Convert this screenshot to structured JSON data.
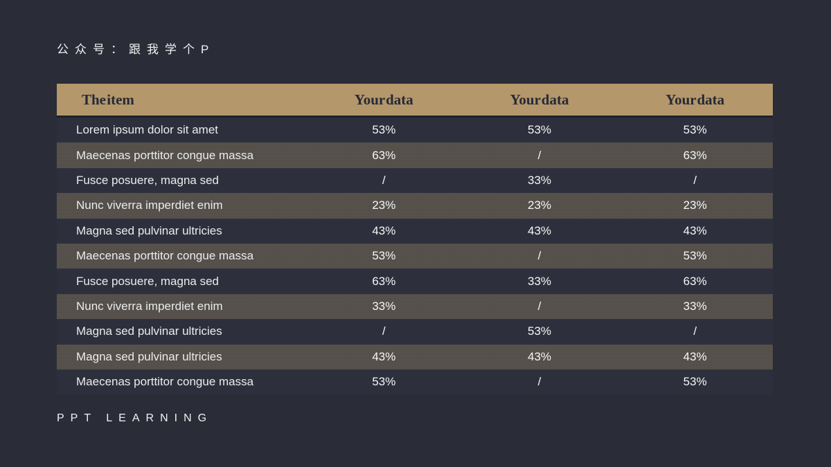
{
  "slide": {
    "watermark_top": "公众号：跟我学个P",
    "watermark_bottom": "PPT LEARNING"
  },
  "colors": {
    "background": "#2a2d38",
    "header_band": "#b4976b",
    "header_text": "#262a37",
    "striped_row": "#544f49",
    "dark_row": "#2d303c",
    "body_text": "#f2f2f2"
  },
  "table": {
    "headers": [
      "The item",
      "Your data",
      "Your data",
      "Your data"
    ],
    "rows": [
      {
        "item": "Lorem ipsum dolor sit amet",
        "values": [
          "53%",
          "53%",
          "53%"
        ]
      },
      {
        "item": "Maecenas porttitor congue massa",
        "values": [
          "63%",
          "/",
          "63%"
        ]
      },
      {
        "item": "Fusce posuere, magna sed",
        "values": [
          "/",
          "33%",
          "/"
        ]
      },
      {
        "item": "Nunc viverra imperdiet enim",
        "values": [
          "23%",
          "23%",
          "23%"
        ]
      },
      {
        "item": "Magna sed pulvinar ultricies",
        "values": [
          "43%",
          "43%",
          "43%"
        ]
      },
      {
        "item": "Maecenas porttitor congue massa",
        "values": [
          "53%",
          "/",
          "53%"
        ]
      },
      {
        "item": "Fusce posuere, magna sed",
        "values": [
          "63%",
          "33%",
          "63%"
        ]
      },
      {
        "item": "Nunc viverra imperdiet enim",
        "values": [
          "33%",
          "/",
          "33%"
        ]
      },
      {
        "item": "Magna sed pulvinar ultricies",
        "values": [
          "/",
          "53%",
          "/"
        ]
      },
      {
        "item": "Magna sed pulvinar ultricies",
        "values": [
          "43%",
          "43%",
          "43%"
        ]
      },
      {
        "item": "Maecenas porttitor congue massa",
        "values": [
          "53%",
          "/",
          "53%"
        ]
      }
    ]
  }
}
